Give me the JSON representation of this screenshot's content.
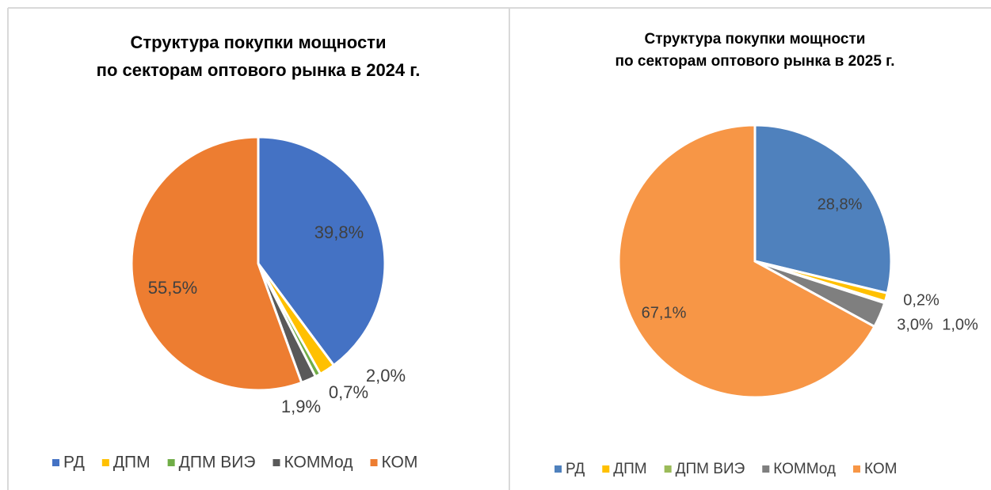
{
  "chart_data": [
    {
      "type": "pie",
      "title": [
        "Структура покупки мощности",
        "по секторам оптового рынка в 2024 г."
      ],
      "categories": [
        "РД",
        "ДПМ",
        "ДПМ ВИЭ",
        "КОММод",
        "КОМ"
      ],
      "values": [
        39.8,
        2.0,
        0.7,
        1.9,
        55.5
      ],
      "value_labels": [
        "39,8%",
        "2,0%",
        "0,7%",
        "1,9%",
        "55,5%"
      ],
      "colors": [
        "#4472c4",
        "#ffc000",
        "#70ad47",
        "#595959",
        "#ed7d31"
      ],
      "legend": "bottom"
    },
    {
      "type": "pie",
      "title": [
        "Структура покупки мощности",
        "по секторам оптового рынка в 2025 г."
      ],
      "categories": [
        "РД",
        "ДПМ",
        "ДПМ ВИЭ",
        "КОММод",
        "КОМ"
      ],
      "values": [
        28.8,
        1.0,
        0.2,
        3.0,
        67.1
      ],
      "value_labels": [
        "28,8%",
        "1,0%",
        "0,2%",
        "3,0%",
        "67,1%"
      ],
      "colors": [
        "#4f81bd",
        "#ffc000",
        "#9bbb59",
        "#7f7f7f",
        "#f79646"
      ],
      "legend": "bottom"
    }
  ]
}
